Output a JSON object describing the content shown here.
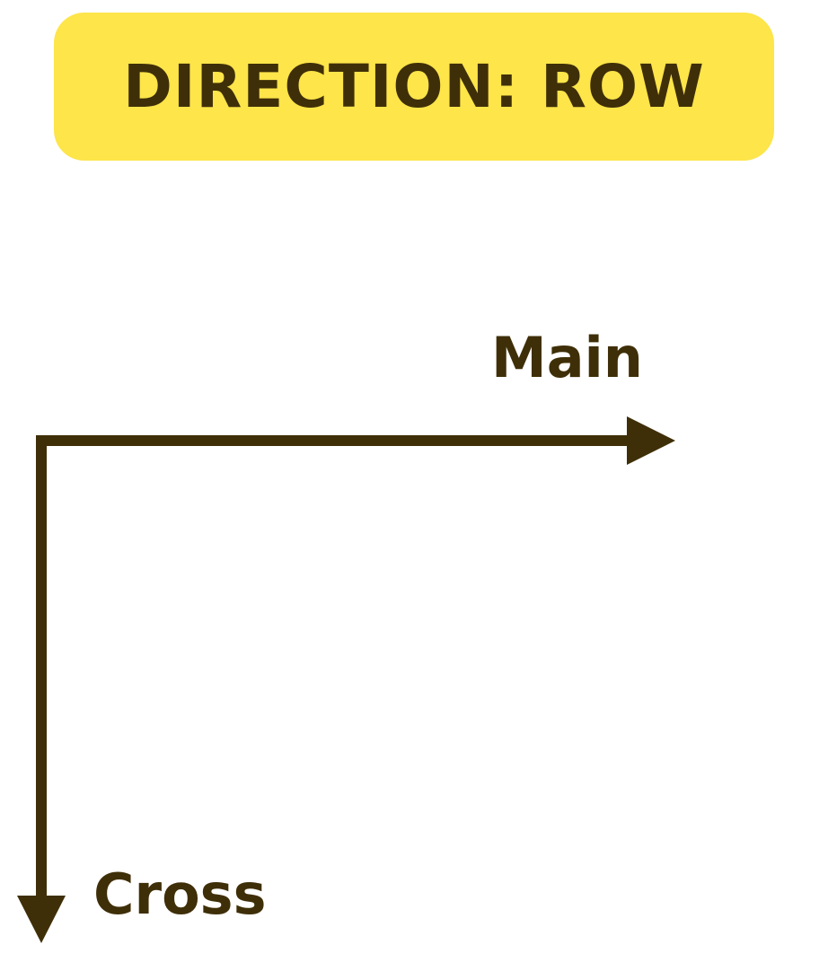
{
  "title": "DIRECTION: ROW",
  "axes": {
    "main_label": "Main",
    "cross_label": "Cross"
  },
  "colors": {
    "banner_bg": "#fde54a",
    "ink": "#3f2f08",
    "background": "#ffffff"
  }
}
